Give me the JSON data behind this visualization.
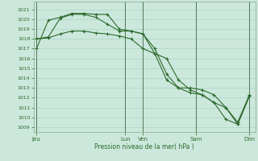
{
  "title": "Pression niveau de la mer( hPa )",
  "bg_color": "#cce8dc",
  "grid_color": "#aad4c4",
  "line_color": "#2d6a2d",
  "ylim": [
    1008.5,
    1021.8
  ],
  "yticks": [
    1009,
    1010,
    1011,
    1012,
    1013,
    1014,
    1015,
    1016,
    1017,
    1018,
    1019,
    1020,
    1021
  ],
  "day_labels": [
    "Jeu",
    "Lun",
    "Ven",
    "Sam",
    "Dim"
  ],
  "day_positions": [
    0,
    60,
    72,
    108,
    144
  ],
  "xlim": [
    -2,
    148
  ],
  "line1": {
    "x": [
      0,
      8,
      16,
      24,
      32,
      40,
      48,
      56,
      64,
      72,
      80,
      88,
      96,
      104,
      112,
      120,
      128,
      136,
      144
    ],
    "y": [
      1017.0,
      1019.9,
      1020.2,
      1020.6,
      1020.6,
      1020.5,
      1020.5,
      1019.0,
      1018.8,
      1018.5,
      1016.5,
      1013.8,
      1013.0,
      1012.5,
      1012.3,
      1011.5,
      1011.0,
      1009.5,
      1012.3
    ]
  },
  "line2": {
    "x": [
      0,
      8,
      16,
      24,
      32,
      40,
      48,
      56,
      64,
      72,
      80,
      88,
      96,
      104,
      112,
      120,
      128,
      136,
      144
    ],
    "y": [
      1018.0,
      1018.2,
      1020.1,
      1020.5,
      1020.5,
      1020.2,
      1019.5,
      1018.8,
      1018.8,
      1018.5,
      1017.0,
      1014.4,
      1013.0,
      1013.0,
      1012.8,
      1012.3,
      1011.0,
      1009.3,
      1012.2
    ]
  },
  "line3": {
    "x": [
      0,
      8,
      16,
      24,
      32,
      40,
      48,
      56,
      64,
      72,
      80,
      88,
      96,
      104,
      112,
      120,
      128,
      136,
      144
    ],
    "y": [
      1018.0,
      1018.1,
      1018.5,
      1018.8,
      1018.8,
      1018.6,
      1018.5,
      1018.3,
      1018.0,
      1017.0,
      1016.5,
      1016.0,
      1013.8,
      1012.8,
      1012.3,
      1011.5,
      1009.8,
      1009.3,
      1012.2
    ]
  }
}
